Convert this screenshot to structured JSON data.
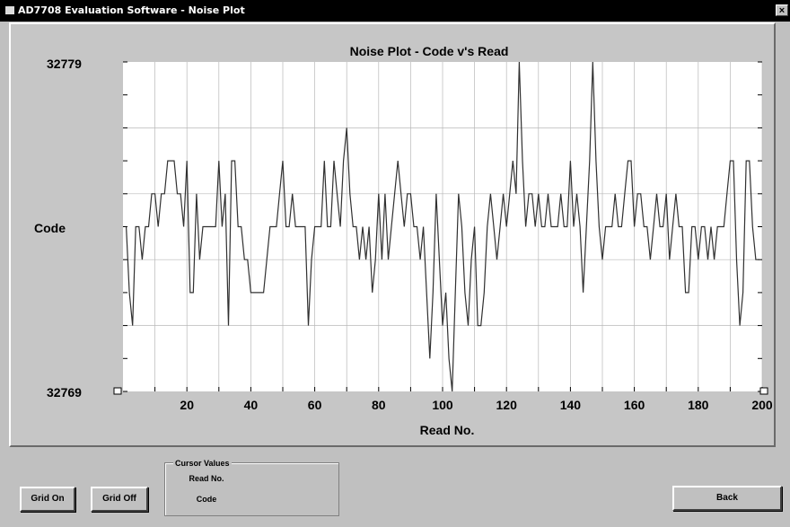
{
  "window": {
    "title": "AD7708 Evaluation Software - Noise Plot",
    "close_glyph": "×"
  },
  "buttons": {
    "grid_on": "Grid On",
    "grid_off": "Grid Off",
    "back": "Back"
  },
  "cursor_values": {
    "title": "Cursor Values",
    "read_no_label": "Read No.",
    "code_label": "Code"
  },
  "colors": {
    "plot_bg": "#ffffff",
    "grid": "#b8b8b8",
    "trace": "#303030",
    "frame_bg": "#c6c6c6"
  },
  "chart_data": {
    "type": "line",
    "title": "Noise Plot - Code v's Read",
    "xlabel": "Read No.",
    "ylabel": "Code",
    "xlim": [
      0,
      200
    ],
    "ylim": [
      32769,
      32779
    ],
    "y_tick_labels": [
      "32779",
      "32769"
    ],
    "x_ticks": [
      20,
      40,
      60,
      80,
      100,
      120,
      140,
      160,
      180,
      200
    ],
    "grid": true,
    "legend": "none",
    "series": [
      {
        "values": [
          32774,
          32772,
          32771,
          32774,
          32774,
          32773,
          32774,
          32774,
          32775,
          32775,
          32774,
          32775,
          32775,
          32776,
          32776,
          32776,
          32775,
          32775,
          32774,
          32776,
          32772,
          32772,
          32775,
          32773,
          32774,
          32774,
          32774,
          32774,
          32774,
          32776,
          32774,
          32775,
          32771,
          32776,
          32776,
          32774,
          32774,
          32773,
          32773,
          32772,
          32772,
          32772,
          32772,
          32772,
          32773,
          32774,
          32774,
          32774,
          32775,
          32776,
          32774,
          32774,
          32775,
          32774,
          32774,
          32774,
          32774,
          32771,
          32773,
          32774,
          32774,
          32774,
          32776,
          32774,
          32774,
          32776,
          32775,
          32774,
          32776,
          32777,
          32775,
          32774,
          32774,
          32773,
          32774,
          32773,
          32774,
          32772,
          32773,
          32775,
          32773,
          32775,
          32773,
          32774,
          32775,
          32776,
          32775,
          32774,
          32775,
          32775,
          32774,
          32774,
          32773,
          32774,
          32772,
          32770,
          32772,
          32775,
          32773,
          32771,
          32772,
          32770,
          32769,
          32772,
          32775,
          32774,
          32772,
          32771,
          32773,
          32774,
          32771,
          32771,
          32772,
          32774,
          32775,
          32774,
          32773,
          32774,
          32775,
          32774,
          32775,
          32776,
          32775,
          32779,
          32776,
          32774,
          32775,
          32775,
          32774,
          32775,
          32774,
          32774,
          32775,
          32774,
          32774,
          32774,
          32775,
          32774,
          32774,
          32776,
          32774,
          32775,
          32774,
          32772,
          32774,
          32776,
          32779,
          32776,
          32774,
          32773,
          32774,
          32774,
          32774,
          32775,
          32774,
          32774,
          32775,
          32776,
          32776,
          32774,
          32775,
          32775,
          32774,
          32774,
          32773,
          32774,
          32775,
          32774,
          32774,
          32775,
          32773,
          32774,
          32775,
          32774,
          32774,
          32772,
          32772,
          32774,
          32774,
          32773,
          32774,
          32774,
          32773,
          32774,
          32773,
          32774,
          32774,
          32774,
          32775,
          32776,
          32776,
          32773,
          32771,
          32772,
          32776,
          32776,
          32774,
          32773,
          32773
        ]
      }
    ]
  }
}
